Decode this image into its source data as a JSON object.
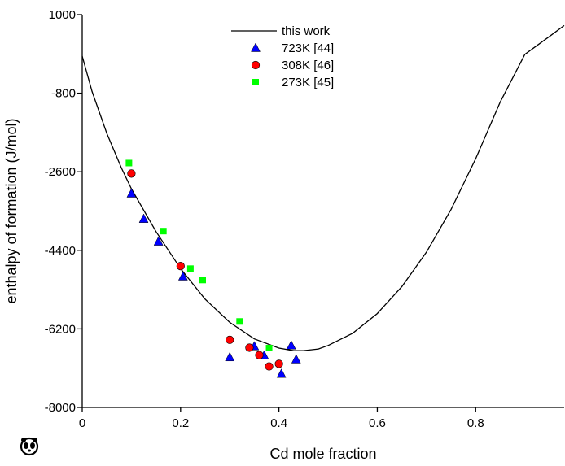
{
  "chart_data": {
    "type": "scatter",
    "xlabel": "Cd mole fraction",
    "ylabel": "enthalpy of formation (J/mol)",
    "xlim": [
      0,
      0.98
    ],
    "ylim": [
      -8000,
      1000
    ],
    "x_ticks": [
      0,
      0.2,
      0.4,
      0.6,
      0.8
    ],
    "x_tick_labels": [
      "0",
      "0.2",
      "0.4",
      "0.6",
      "0.8"
    ],
    "y_ticks": [
      1000,
      -800,
      -2600,
      -4400,
      -6200,
      -8000
    ],
    "y_tick_labels": [
      "1000",
      "-800",
      "-2600",
      "-4400",
      "-6200",
      "-8000"
    ],
    "grid": false,
    "legend_position": "top-center",
    "series": [
      {
        "name": "this work",
        "kind": "line",
        "color": "#000000",
        "x": [
          0,
          0.02,
          0.05,
          0.08,
          0.1,
          0.15,
          0.2,
          0.25,
          0.3,
          0.35,
          0.4,
          0.43,
          0.45,
          0.48,
          0.5,
          0.55,
          0.6,
          0.65,
          0.7,
          0.75,
          0.8,
          0.85,
          0.9,
          0.95,
          0.98
        ],
        "y": [
          50,
          -760,
          -1720,
          -2520,
          -2990,
          -3970,
          -4820,
          -5520,
          -6050,
          -6430,
          -6640,
          -6700,
          -6700,
          -6660,
          -6580,
          -6300,
          -5850,
          -5230,
          -4440,
          -3460,
          -2300,
          -1000,
          90,
          500,
          750
        ]
      },
      {
        "name": "723K [44]",
        "kind": "marker",
        "marker": "triangle",
        "color": "#0000ff",
        "x": [
          0.1,
          0.125,
          0.155,
          0.205,
          0.3,
          0.35,
          0.37,
          0.405,
          0.425,
          0.435
        ],
        "y": [
          -3100,
          -3680,
          -4200,
          -5000,
          -6850,
          -6600,
          -6810,
          -7230,
          -6580,
          -6900
        ]
      },
      {
        "name": "308K [46]",
        "kind": "marker",
        "marker": "circle",
        "color": "#ff0000",
        "x": [
          0.1,
          0.2,
          0.3,
          0.34,
          0.36,
          0.38,
          0.4
        ],
        "y": [
          -2640,
          -4760,
          -6450,
          -6630,
          -6800,
          -7060,
          -7000
        ]
      },
      {
        "name": "273K [45]",
        "kind": "marker",
        "marker": "square",
        "color": "#00ff00",
        "x": [
          0.095,
          0.165,
          0.22,
          0.245,
          0.32,
          0.38
        ],
        "y": [
          -2400,
          -3960,
          -4820,
          -5080,
          -6030,
          -6640
        ]
      }
    ]
  }
}
